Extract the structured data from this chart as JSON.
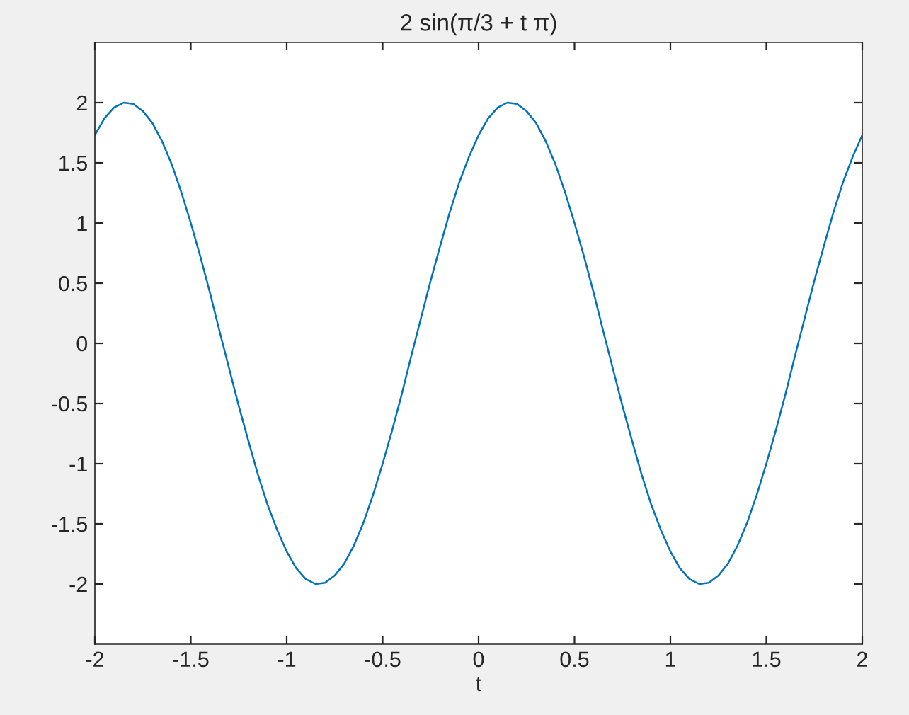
{
  "chart_data": {
    "type": "line",
    "title": "2 sin(π/3 + t π)",
    "xlabel": "t",
    "x": [
      -2,
      -1.95,
      -1.9,
      -1.85,
      -1.8,
      -1.75,
      -1.7,
      -1.65,
      -1.6,
      -1.55,
      -1.5,
      -1.45,
      -1.4,
      -1.35,
      -1.3,
      -1.25,
      -1.2,
      -1.15,
      -1.1,
      -1.05,
      -1,
      -0.95,
      -0.9,
      -0.85,
      -0.8,
      -0.75,
      -0.7,
      -0.65,
      -0.6,
      -0.55,
      -0.5,
      -0.45,
      -0.4,
      -0.35,
      -0.3,
      -0.25,
      -0.2,
      -0.15,
      -0.1,
      -0.05,
      0,
      0.05,
      0.1,
      0.15,
      0.2,
      0.25,
      0.3,
      0.35,
      0.4,
      0.45,
      0.5,
      0.55,
      0.6,
      0.65,
      0.7,
      0.75,
      0.8,
      0.85,
      0.9,
      0.95,
      1,
      1.05,
      1.1,
      1.15,
      1.2,
      1.25,
      1.3,
      1.35,
      1.4,
      1.45,
      1.5,
      1.55,
      1.6,
      1.65,
      1.7,
      1.75,
      1.8,
      1.85,
      1.9,
      1.95,
      2
    ],
    "series": [
      {
        "color": "#0072bd",
        "values": [
          1.73,
          1.87,
          1.96,
          2.0,
          1.99,
          1.93,
          1.83,
          1.68,
          1.49,
          1.26,
          1.0,
          0.72,
          0.42,
          0.1,
          -0.21,
          -0.52,
          -0.81,
          -1.09,
          -1.34,
          -1.55,
          -1.73,
          -1.87,
          -1.96,
          -2.0,
          -1.99,
          -1.93,
          -1.83,
          -1.68,
          -1.49,
          -1.26,
          -1.0,
          -0.72,
          -0.42,
          -0.1,
          0.21,
          0.52,
          0.81,
          1.09,
          1.34,
          1.55,
          1.73,
          1.87,
          1.96,
          2.0,
          1.99,
          1.93,
          1.83,
          1.68,
          1.49,
          1.26,
          1.0,
          0.72,
          0.42,
          0.1,
          -0.21,
          -0.52,
          -0.81,
          -1.09,
          -1.34,
          -1.55,
          -1.73,
          -1.87,
          -1.96,
          -2.0,
          -1.99,
          -1.93,
          -1.83,
          -1.68,
          -1.49,
          -1.26,
          -1.0,
          -0.72,
          -0.42,
          -0.1,
          0.21,
          0.52,
          0.81,
          1.09,
          1.34,
          1.55,
          1.73
        ]
      }
    ],
    "xlim": [
      -2,
      2
    ],
    "ylim": [
      -2.5,
      2.5
    ],
    "xticks": [
      -2,
      -1.5,
      -1,
      -0.5,
      0,
      0.5,
      1,
      1.5,
      2
    ],
    "yticks": [
      -2,
      -1.5,
      -1,
      -0.5,
      0,
      0.5,
      1,
      1.5,
      2
    ],
    "marker": "none"
  }
}
